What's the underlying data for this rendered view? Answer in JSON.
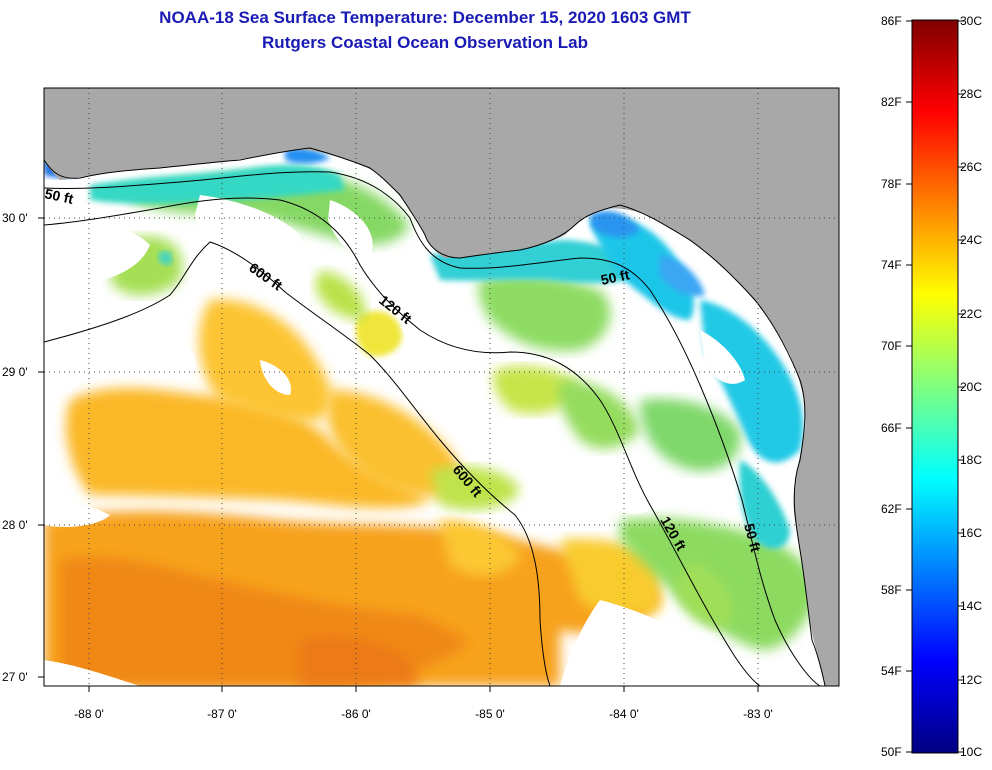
{
  "header": {
    "title_line1": "NOAA-18 Sea Surface Temperature:  December 15, 2020 1603 GMT",
    "title_line2": "Rutgers Coastal Ocean Observation Lab"
  },
  "map": {
    "lon_labels": [
      "-88 0'",
      "-87 0'",
      "-86 0'",
      "-85 0'",
      "-84 0'",
      "-83 0'"
    ],
    "lat_labels": [
      "30 0'",
      "29 0'",
      "28 0'",
      "27 0'"
    ],
    "contour_labels": {
      "c50_west": "50 ft",
      "c600_north": "600 ft",
      "c120_north": "120 ft",
      "c50_east": "50 ft",
      "c600_south": "600 ft",
      "c120_south": "120 ft",
      "c50_south": "50 ft"
    },
    "colors": {
      "land": "#a8a8a8",
      "cloud": "#ffffff",
      "coastline": "#000000"
    }
  },
  "colorbar": {
    "fahrenheit_labels": [
      "86F",
      "82F",
      "78F",
      "74F",
      "70F",
      "66F",
      "62F",
      "58F",
      "54F",
      "50F"
    ],
    "celsius_labels": [
      "30C",
      "28C",
      "26C",
      "24C",
      "22C",
      "20C",
      "18C",
      "16C",
      "14C",
      "12C",
      "10C"
    ],
    "gradient_stops": [
      "#000080",
      "#0000ff",
      "#0080ff",
      "#00ffff",
      "#80ff80",
      "#ffff00",
      "#ff8000",
      "#ff0000",
      "#800000"
    ]
  }
}
